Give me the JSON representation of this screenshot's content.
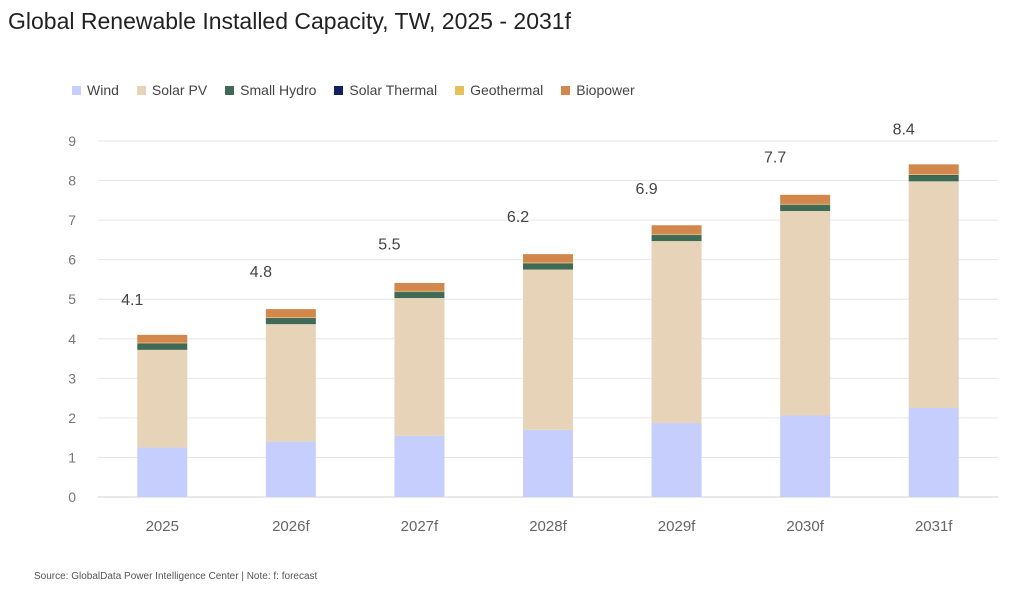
{
  "title": "Global Renewable Installed Capacity, TW, 2025 - 2031f",
  "source": "Source: GlobalData Power Intelligence Center | Note: f: forecast",
  "chart_data": {
    "type": "bar",
    "stacked": true,
    "title": "Global Renewable Installed Capacity, TW, 2025 - 2031f",
    "xlabel": "",
    "ylabel": "",
    "ylim": [
      0,
      9
    ],
    "yticks": [
      "0",
      "1",
      "2",
      "3",
      "4",
      "5",
      "6",
      "7",
      "8",
      "9"
    ],
    "grid": true,
    "legend_position": "top",
    "categories": [
      "2025",
      "2026f",
      "2027f",
      "2028f",
      "2029f",
      "2030f",
      "2031f"
    ],
    "series": [
      {
        "name": "Wind",
        "color": "#c5cefc",
        "values": [
          1.25,
          1.4,
          1.55,
          1.7,
          1.87,
          2.06,
          2.25
        ]
      },
      {
        "name": "Solar PV",
        "color": "#e6d3b8",
        "values": [
          2.47,
          2.97,
          3.48,
          4.05,
          4.6,
          5.17,
          5.73
        ]
      },
      {
        "name": "Small Hydro",
        "color": "#3f6b56",
        "values": [
          0.15,
          0.15,
          0.15,
          0.15,
          0.15,
          0.15,
          0.15
        ]
      },
      {
        "name": "Solar Thermal",
        "color": "#14205e",
        "values": [
          0.01,
          0.01,
          0.01,
          0.01,
          0.01,
          0.01,
          0.01
        ]
      },
      {
        "name": "Geothermal",
        "color": "#e8c05a",
        "values": [
          0.02,
          0.02,
          0.02,
          0.02,
          0.02,
          0.02,
          0.02
        ]
      },
      {
        "name": "Biopower",
        "color": "#d2874c",
        "values": [
          0.2,
          0.2,
          0.2,
          0.21,
          0.22,
          0.23,
          0.25
        ]
      }
    ],
    "totals": [
      "4.1",
      "4.8",
      "5.5",
      "6.2",
      "6.9",
      "7.7",
      "8.4"
    ]
  }
}
